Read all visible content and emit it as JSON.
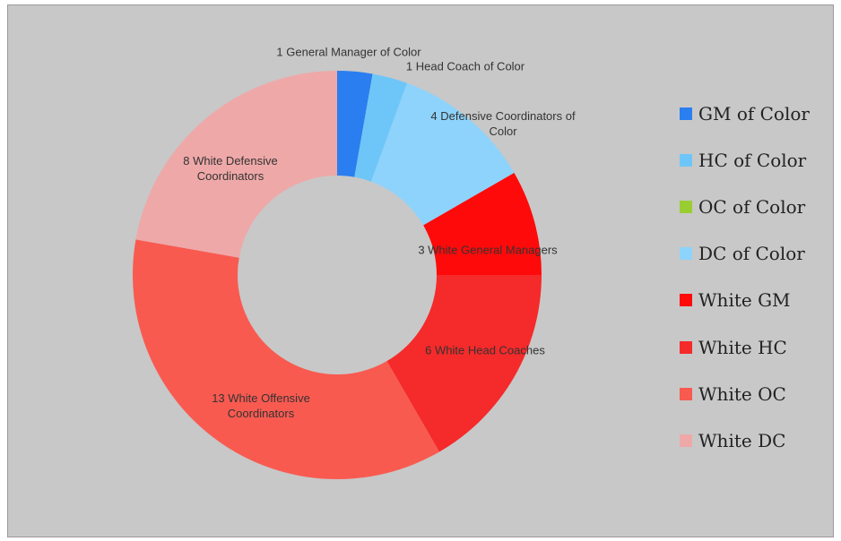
{
  "chart_data": {
    "type": "pie",
    "categories": [
      "GM of Color",
      "HC of Color",
      "OC of Color",
      "DC of Color",
      "White GM",
      "White HC",
      "White OC",
      "White DC"
    ],
    "values": [
      1,
      1,
      0,
      4,
      3,
      6,
      13,
      8
    ],
    "value_labels": [
      "1 General Manager of Color",
      "1 Head Coach of Color",
      null,
      "4 Defensive Coordinators of Color",
      "3 White General Managers",
      "6 White Head Coaches",
      "13 White Offensive Coordinators",
      "8 White Defensive Coordinators"
    ],
    "colors": [
      "#2a7ef0",
      "#6ec6f8",
      "#9acd32",
      "#8ed3fb",
      "#ff0a0a",
      "#f52a2a",
      "#f95a50",
      "#efa8a8"
    ],
    "donut": true,
    "legend": "right"
  }
}
